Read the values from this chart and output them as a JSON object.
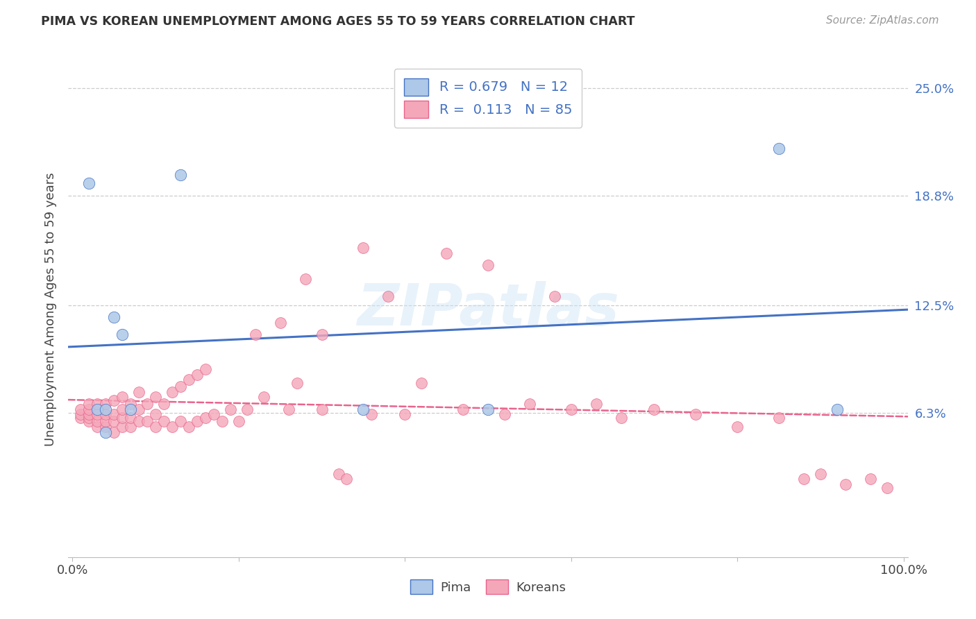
{
  "title": "PIMA VS KOREAN UNEMPLOYMENT AMONG AGES 55 TO 59 YEARS CORRELATION CHART",
  "source": "Source: ZipAtlas.com",
  "ylabel": "Unemployment Among Ages 55 to 59 years",
  "pima_color": "#adc8e8",
  "pima_line_color": "#4472c4",
  "korean_color": "#f4a7b9",
  "korean_line_color": "#e8638c",
  "bg_color": "#ffffff",
  "watermark": "ZIPatlas",
  "pima_x": [
    0.02,
    0.03,
    0.04,
    0.04,
    0.05,
    0.06,
    0.07,
    0.13,
    0.35,
    0.5,
    0.85,
    0.92
  ],
  "pima_y": [
    0.195,
    0.065,
    0.065,
    0.052,
    0.118,
    0.108,
    0.065,
    0.2,
    0.065,
    0.065,
    0.215,
    0.065
  ],
  "korean_x": [
    0.01,
    0.01,
    0.01,
    0.02,
    0.02,
    0.02,
    0.02,
    0.02,
    0.03,
    0.03,
    0.03,
    0.03,
    0.04,
    0.04,
    0.04,
    0.04,
    0.05,
    0.05,
    0.05,
    0.05,
    0.06,
    0.06,
    0.06,
    0.06,
    0.07,
    0.07,
    0.07,
    0.08,
    0.08,
    0.08,
    0.09,
    0.09,
    0.1,
    0.1,
    0.1,
    0.11,
    0.11,
    0.12,
    0.12,
    0.13,
    0.13,
    0.14,
    0.14,
    0.15,
    0.15,
    0.16,
    0.16,
    0.17,
    0.18,
    0.19,
    0.2,
    0.21,
    0.22,
    0.23,
    0.25,
    0.26,
    0.27,
    0.28,
    0.3,
    0.3,
    0.32,
    0.33,
    0.35,
    0.36,
    0.38,
    0.4,
    0.42,
    0.45,
    0.47,
    0.5,
    0.52,
    0.55,
    0.58,
    0.6,
    0.63,
    0.66,
    0.7,
    0.75,
    0.8,
    0.85,
    0.88,
    0.9,
    0.93,
    0.96,
    0.98
  ],
  "korean_y": [
    0.06,
    0.062,
    0.065,
    0.058,
    0.06,
    0.062,
    0.065,
    0.068,
    0.055,
    0.058,
    0.062,
    0.068,
    0.055,
    0.058,
    0.062,
    0.068,
    0.052,
    0.058,
    0.062,
    0.07,
    0.055,
    0.06,
    0.065,
    0.072,
    0.055,
    0.06,
    0.068,
    0.058,
    0.065,
    0.075,
    0.058,
    0.068,
    0.055,
    0.062,
    0.072,
    0.058,
    0.068,
    0.055,
    0.075,
    0.058,
    0.078,
    0.055,
    0.082,
    0.058,
    0.085,
    0.06,
    0.088,
    0.062,
    0.058,
    0.065,
    0.058,
    0.065,
    0.108,
    0.072,
    0.115,
    0.065,
    0.08,
    0.14,
    0.065,
    0.108,
    0.028,
    0.025,
    0.158,
    0.062,
    0.13,
    0.062,
    0.08,
    0.155,
    0.065,
    0.148,
    0.062,
    0.068,
    0.13,
    0.065,
    0.068,
    0.06,
    0.065,
    0.062,
    0.055,
    0.06,
    0.025,
    0.028,
    0.022,
    0.025,
    0.02
  ],
  "ytick_vals": [
    0.063,
    0.125,
    0.188,
    0.25
  ],
  "ytick_labels": [
    "6.3%",
    "12.5%",
    "18.8%",
    "25.0%"
  ],
  "ylim_min": -0.02,
  "ylim_max": 0.265,
  "xlim_min": -0.005,
  "xlim_max": 1.005
}
